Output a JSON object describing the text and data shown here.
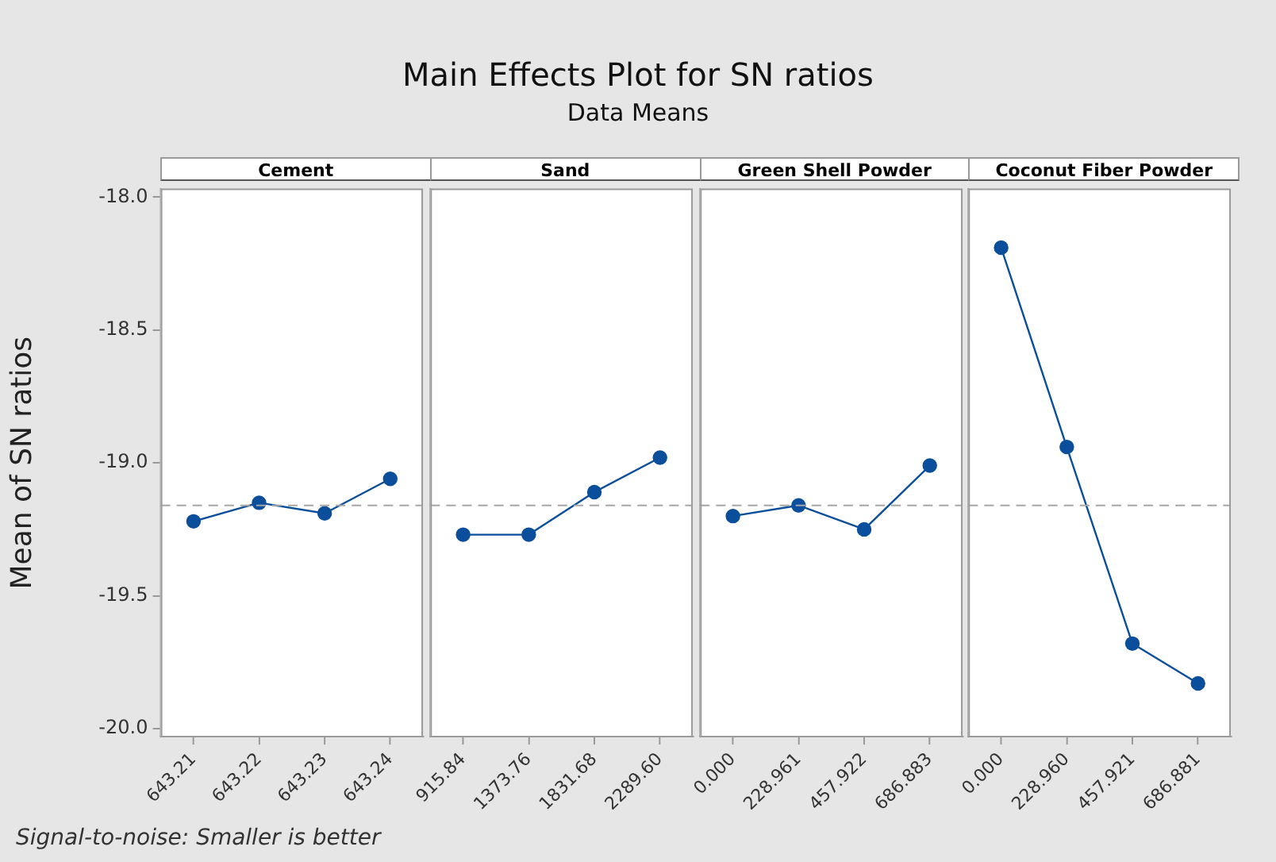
{
  "chart_data": [
    {
      "type": "line",
      "title": "Cement",
      "ylabel": "Mean of SN ratios",
      "categories": [
        "643.21",
        "643.22",
        "643.23",
        "643.24"
      ],
      "values": [
        -19.22,
        -19.15,
        -19.19,
        -19.06
      ],
      "color": "#0b4f9c",
      "marker": "circle",
      "ylim": [
        -20.03,
        -17.97
      ],
      "yticks": [
        {
          "value": -20,
          "label": "-20.0"
        },
        -19.5,
        {
          "value": -19,
          "label": "-19.0"
        },
        -18.5,
        {
          "value": -18,
          "label": "-18.0"
        }
      ],
      "legend": false,
      "ref_lines": [
        {
          "axis": "y",
          "value": -19.16,
          "color": "#a6a6a6",
          "line_style": "dashed"
        }
      ],
      "annotations": [
        "Main Effects Plot for SN ratios",
        "Data Means",
        "Signal-to-noise: Smaller is better"
      ]
    },
    {
      "type": "line",
      "title": "Sand",
      "categories": [
        "915.84",
        "1373.76",
        "1831.68",
        "2289.60"
      ],
      "values": [
        -19.27,
        -19.27,
        -19.11,
        -18.98
      ],
      "color": "#0b4f9c",
      "marker": "circle",
      "ylim": [
        -20.03,
        -17.97
      ],
      "tick_labels": "x",
      "legend": false,
      "ref_lines": [
        {
          "axis": "y",
          "value": -19.16,
          "color": "#a6a6a6",
          "line_style": "dashed"
        }
      ]
    },
    {
      "type": "line",
      "title": "Green Shell Powder",
      "categories": [
        "0.000",
        "228.961",
        "457.922",
        "686.883"
      ],
      "values": [
        -19.2,
        -19.16,
        -19.25,
        -19.01
      ],
      "color": "#0b4f9c",
      "marker": "circle",
      "ylim": [
        -20.03,
        -17.97
      ],
      "tick_labels": "x",
      "legend": false,
      "ref_lines": [
        {
          "axis": "y",
          "value": -19.16,
          "color": "#a6a6a6",
          "line_style": "dashed"
        }
      ]
    },
    {
      "type": "line",
      "title": "Coconut Fiber Powder",
      "categories": [
        "0.000",
        "228.960",
        "457.921",
        "686.881"
      ],
      "values": [
        -18.19,
        -18.94,
        -19.68,
        -19.83
      ],
      "color": "#0b4f9c",
      "marker": "circle",
      "ylim": [
        -20.03,
        -17.97
      ],
      "tick_labels": "x",
      "legend": false,
      "ref_lines": [
        {
          "axis": "y",
          "value": -19.16,
          "color": "#a6a6a6",
          "line_style": "dashed"
        }
      ]
    }
  ]
}
